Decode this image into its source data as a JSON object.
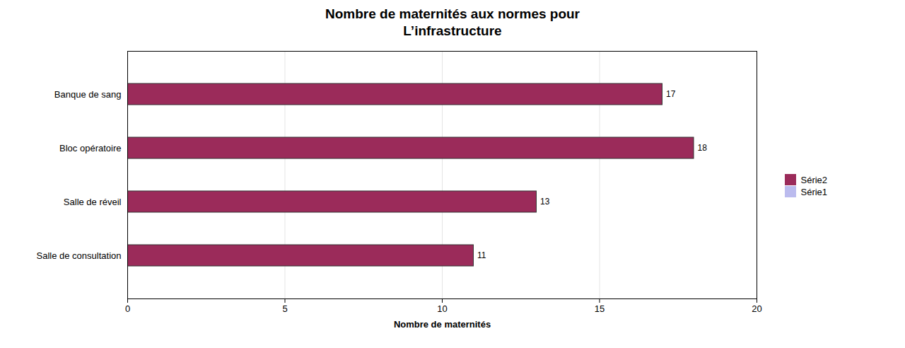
{
  "chart_data": {
    "type": "bar",
    "orientation": "horizontal",
    "title": "Nombre de maternités aux normes pour\nL’infrastructure",
    "xlabel": "Nombre de maternités",
    "categories": [
      "Banque de sang",
      "Bloc opératoire",
      "Salle de réveil",
      "Salle de consultation"
    ],
    "series": [
      {
        "name": "Série2",
        "color": "#9B2B5A",
        "values": [
          17,
          18,
          13,
          11
        ]
      },
      {
        "name": "Série1",
        "color": "#BBBBEE",
        "values": [
          null,
          null,
          null,
          null
        ]
      }
    ],
    "xlim": [
      0,
      20
    ],
    "xticks": [
      0,
      5,
      10,
      15,
      20
    ],
    "grid": true,
    "data_labels": true,
    "legend": "right"
  }
}
